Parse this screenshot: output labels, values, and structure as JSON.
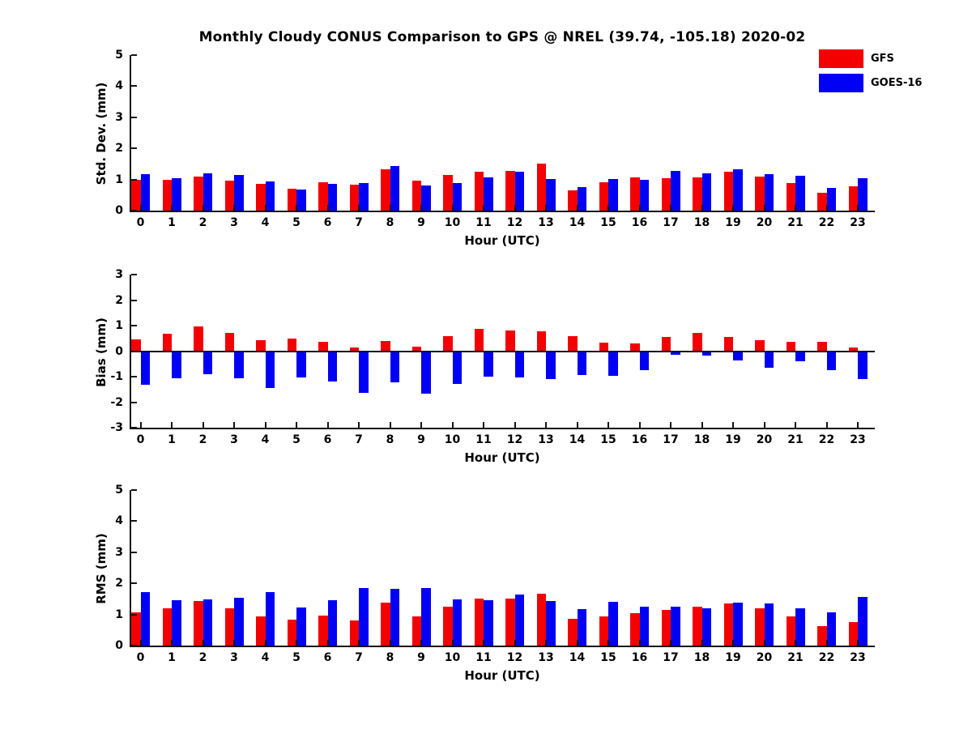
{
  "page": {
    "title": "Monthly Cloudy CONUS Comparison to GPS @ NREL (39.74, -105.18) 2020-02"
  },
  "legend": {
    "position": "top-right",
    "entries": [
      {
        "label": "GFS",
        "color": "#f40000"
      },
      {
        "label": "GOES-16",
        "color": "#0000f4"
      }
    ]
  },
  "chart_data": [
    {
      "type": "bar",
      "panel": "std-dev",
      "ylabel": "Std. Dev. (mm)",
      "xlabel": "Hour (UTC)",
      "ylim": [
        0,
        5
      ],
      "yticks": [
        0,
        1,
        2,
        3,
        4,
        5
      ],
      "grid": false,
      "categories": [
        "0",
        "1",
        "2",
        "3",
        "4",
        "5",
        "6",
        "7",
        "8",
        "9",
        "10",
        "11",
        "12",
        "13",
        "14",
        "15",
        "16",
        "17",
        "18",
        "19",
        "20",
        "21",
        "22",
        "23"
      ],
      "series": [
        {
          "name": "GFS",
          "color": "#f40000",
          "values": [
            1.0,
            1.0,
            1.09,
            0.97,
            0.86,
            0.71,
            0.91,
            0.83,
            1.33,
            0.97,
            1.14,
            1.24,
            1.28,
            1.5,
            0.66,
            0.9,
            1.06,
            1.04,
            1.06,
            1.25,
            1.09,
            0.88,
            0.58,
            0.77
          ]
        },
        {
          "name": "GOES-16",
          "color": "#0000f4",
          "values": [
            1.16,
            1.04,
            1.21,
            1.15,
            0.93,
            0.67,
            0.87,
            0.89,
            1.42,
            0.8,
            0.88,
            1.08,
            1.26,
            1.01,
            0.76,
            1.02,
            0.98,
            1.27,
            1.21,
            1.34,
            1.16,
            1.11,
            0.73,
            1.05
          ]
        }
      ]
    },
    {
      "type": "bar",
      "panel": "bias",
      "ylabel": "Bias (mm)",
      "xlabel": "Hour (UTC)",
      "ylim": [
        -3,
        3
      ],
      "yticks": [
        3,
        2,
        1,
        0,
        -1,
        -2,
        -3
      ],
      "grid": false,
      "zero_line": true,
      "categories": [
        "0",
        "1",
        "2",
        "3",
        "4",
        "5",
        "6",
        "7",
        "8",
        "9",
        "10",
        "11",
        "12",
        "13",
        "14",
        "15",
        "16",
        "17",
        "18",
        "19",
        "20",
        "21",
        "22",
        "23"
      ],
      "series": [
        {
          "name": "GFS",
          "color": "#f40000",
          "values": [
            0.45,
            0.69,
            0.96,
            0.72,
            0.42,
            0.49,
            0.35,
            0.15,
            0.41,
            0.18,
            0.59,
            0.86,
            0.81,
            0.78,
            0.58,
            0.34,
            0.29,
            0.56,
            0.72,
            0.55,
            0.42,
            0.38,
            0.36,
            0.14
          ]
        },
        {
          "name": "GOES-16",
          "color": "#0000f4",
          "values": [
            -1.31,
            -1.05,
            -0.92,
            -1.07,
            -1.46,
            -1.02,
            -1.18,
            -1.64,
            -1.21,
            -1.67,
            -1.29,
            -1.01,
            -1.03,
            -1.08,
            -0.93,
            -0.98,
            -0.74,
            -0.15,
            -0.19,
            -0.38,
            -0.64,
            -0.39,
            -0.75,
            -1.08
          ]
        }
      ]
    },
    {
      "type": "bar",
      "panel": "rms",
      "ylabel": "RMS (mm)",
      "xlabel": "Hour (UTC)",
      "ylim": [
        0,
        5
      ],
      "yticks": [
        0,
        1,
        2,
        3,
        4,
        5
      ],
      "grid": false,
      "categories": [
        "0",
        "1",
        "2",
        "3",
        "4",
        "5",
        "6",
        "7",
        "8",
        "9",
        "10",
        "11",
        "12",
        "13",
        "14",
        "15",
        "16",
        "17",
        "18",
        "19",
        "20",
        "21",
        "22",
        "23"
      ],
      "series": [
        {
          "name": "GFS",
          "color": "#f40000",
          "values": [
            1.08,
            1.19,
            1.43,
            1.19,
            0.93,
            0.84,
            0.97,
            0.81,
            1.37,
            0.95,
            1.26,
            1.5,
            1.51,
            1.67,
            0.86,
            0.95,
            1.05,
            1.14,
            1.26,
            1.35,
            1.19,
            0.94,
            0.62,
            0.76
          ]
        },
        {
          "name": "GOES-16",
          "color": "#0000f4",
          "values": [
            1.72,
            1.46,
            1.48,
            1.54,
            1.72,
            1.23,
            1.47,
            1.84,
            1.83,
            1.86,
            1.49,
            1.47,
            1.63,
            1.44,
            1.18,
            1.4,
            1.26,
            1.24,
            1.21,
            1.38,
            1.35,
            1.21,
            1.07,
            1.55
          ]
        }
      ]
    }
  ]
}
